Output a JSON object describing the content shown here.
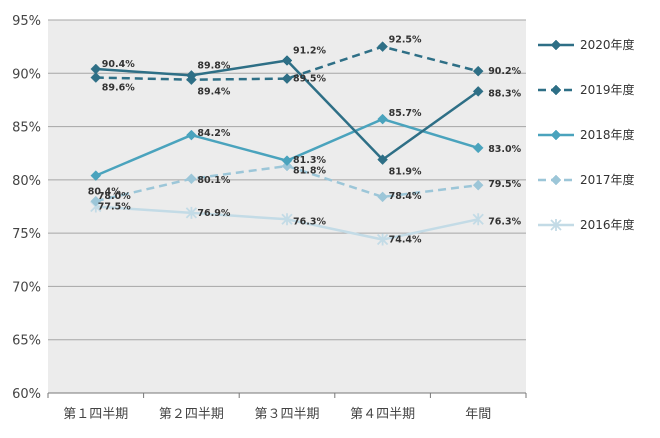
{
  "chart_data": {
    "type": "line",
    "categories": [
      "第１四半期",
      "第２四半期",
      "第３四半期",
      "第４四半期",
      "年間"
    ],
    "y_ticks": [
      "60%",
      "65%",
      "70%",
      "75%",
      "80%",
      "85%",
      "90%",
      "95%"
    ],
    "ylim": [
      60,
      95
    ],
    "grid": true,
    "legend_position": "right",
    "plot_background": "#ececec",
    "series": [
      {
        "name": "2020年度",
        "values": [
          90.4,
          89.8,
          91.2,
          81.9,
          88.3
        ],
        "labels": [
          "90.4%",
          "89.8%",
          "91.2%",
          "81.9%",
          "88.3%"
        ],
        "color": "#2e6f86",
        "dash": "solid",
        "marker": "diamond"
      },
      {
        "name": "2019年度",
        "values": [
          89.6,
          89.4,
          89.5,
          92.5,
          90.2
        ],
        "labels": [
          "89.6%",
          "89.4%",
          "89.5%",
          "92.5%",
          "90.2%"
        ],
        "color": "#2e6f86",
        "dash": "dashed",
        "marker": "diamond"
      },
      {
        "name": "2018年度",
        "values": [
          80.4,
          84.2,
          81.8,
          85.7,
          83.0
        ],
        "labels": [
          "80.4%",
          "84.2%",
          "81.8%",
          "85.7%",
          "83.0%"
        ],
        "color": "#4aa3bd",
        "dash": "solid",
        "marker": "diamond"
      },
      {
        "name": "2017年度",
        "values": [
          78.0,
          80.1,
          81.3,
          78.4,
          79.5
        ],
        "labels": [
          "78.0%",
          "80.1%",
          "81.3%",
          "78.4%",
          "79.5%"
        ],
        "color": "#9cc6d8",
        "dash": "dashed",
        "marker": "diamond"
      },
      {
        "name": "2016年度",
        "values": [
          77.5,
          76.9,
          76.3,
          74.4,
          76.3
        ],
        "labels": [
          "77.5%",
          "76.9%",
          "76.3%",
          "74.4%",
          "76.3%"
        ],
        "color": "#c3dbe6",
        "dash": "solid",
        "marker": "star"
      }
    ]
  }
}
